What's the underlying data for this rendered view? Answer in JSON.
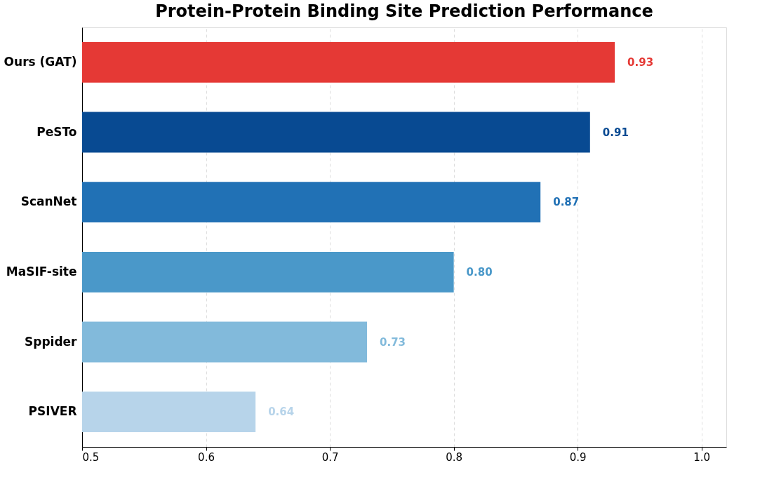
{
  "chart_data": {
    "type": "bar",
    "orientation": "horizontal",
    "title": "Protein-Protein Binding Site Prediction Performance",
    "categories": [
      "Ours (GAT)",
      "PeSTo",
      "ScanNet",
      "MaSIF-site",
      "Sppider",
      "PSIVER"
    ],
    "values": [
      0.93,
      0.91,
      0.87,
      0.8,
      0.73,
      0.64
    ],
    "colors": [
      "#e53935",
      "#084a92",
      "#2171b5",
      "#4a98c9",
      "#82badb",
      "#b7d4ea"
    ],
    "value_labels": [
      "0.93",
      "0.91",
      "0.87",
      "0.80",
      "0.73",
      "0.64"
    ],
    "xlim": [
      0.5,
      1.02
    ],
    "xticks": [
      0.5,
      0.6,
      0.7,
      0.8,
      0.9,
      {
        "value": 1.0,
        "label": "1.0"
      }
    ],
    "grid": "x"
  }
}
